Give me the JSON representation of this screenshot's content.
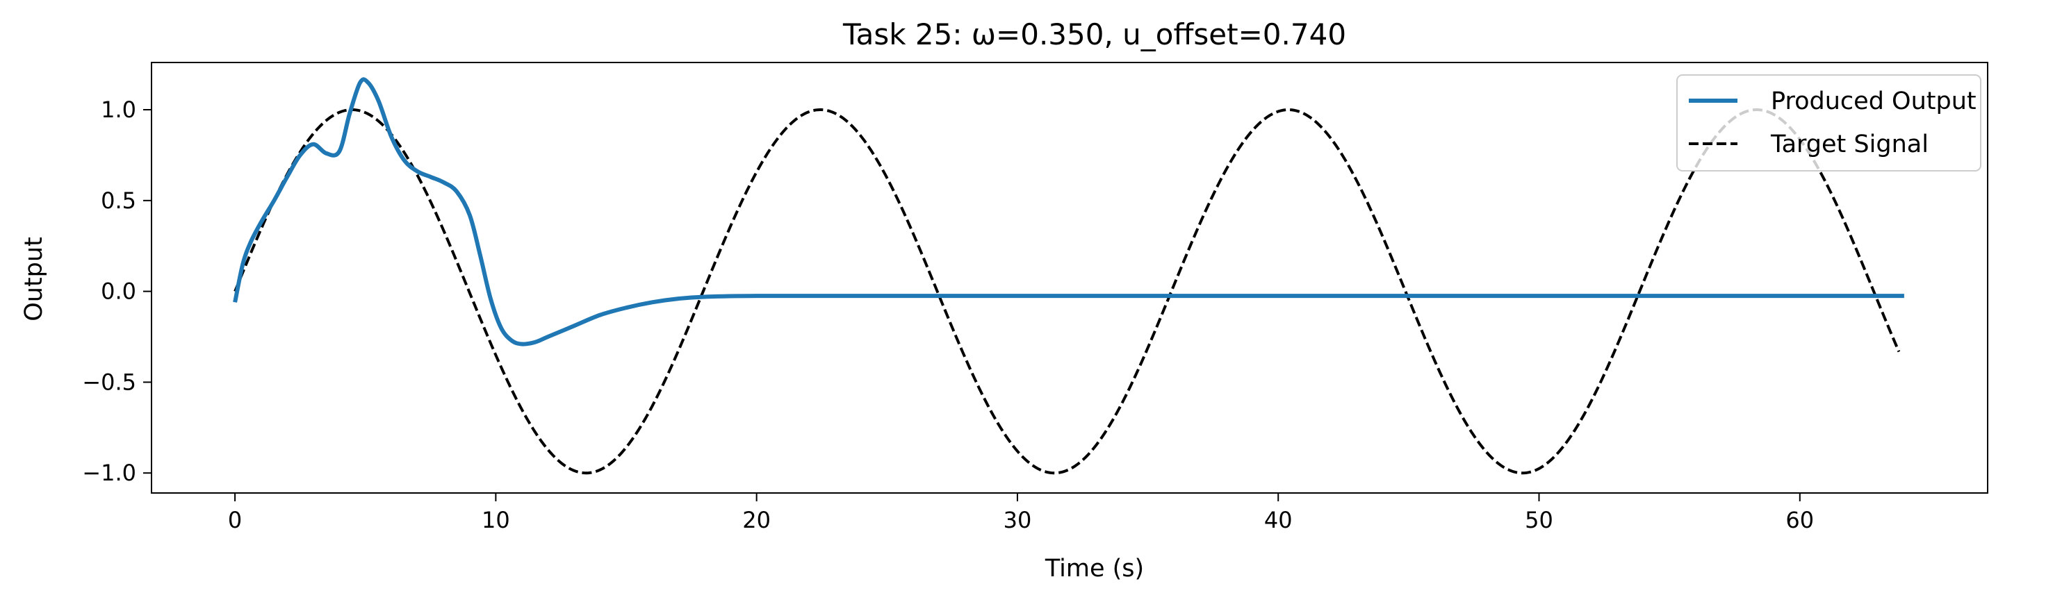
{
  "chart_data": {
    "type": "line",
    "title": "Task 25: ω=0.350, u_offset=0.740",
    "xlabel": "Time (s)",
    "ylabel": "Output",
    "xlim": [
      -3.2,
      67.2
    ],
    "ylim": [
      -1.11,
      1.26
    ],
    "x_ticks": [
      0,
      10,
      20,
      30,
      40,
      50,
      60
    ],
    "y_ticks": [
      -1.0,
      -0.5,
      0.0,
      0.5,
      1.0
    ],
    "x_tick_labels": [
      "0",
      "10",
      "20",
      "30",
      "40",
      "50",
      "60"
    ],
    "y_tick_labels": [
      "−1.0",
      "−0.5",
      "0.0",
      "0.5",
      "1.0"
    ],
    "grid": false,
    "legend_position": "top-right",
    "series": [
      {
        "name": "Produced Output",
        "color": "#1f77b4",
        "style": "solid",
        "x": [
          0,
          0.3,
          0.6,
          1.0,
          1.5,
          2.0,
          2.5,
          3.0,
          3.5,
          4.0,
          4.4,
          4.8,
          5.1,
          5.5,
          6.0,
          6.5,
          7.0,
          7.5,
          8.0,
          8.5,
          9.0,
          9.4,
          9.8,
          10.2,
          10.6,
          11.0,
          11.5,
          12.0,
          13.0,
          14.0,
          15.0,
          16.0,
          17.0,
          18.0,
          20.0,
          25.0,
          30.0,
          40.0,
          50.0,
          60.0,
          64.0
        ],
        "y": [
          -0.06,
          0.15,
          0.27,
          0.38,
          0.5,
          0.63,
          0.75,
          0.81,
          0.76,
          0.77,
          0.98,
          1.15,
          1.15,
          1.05,
          0.85,
          0.72,
          0.66,
          0.63,
          0.6,
          0.55,
          0.42,
          0.2,
          -0.04,
          -0.2,
          -0.27,
          -0.29,
          -0.28,
          -0.25,
          -0.19,
          -0.13,
          -0.09,
          -0.06,
          -0.04,
          -0.03,
          -0.025,
          -0.025,
          -0.025,
          -0.025,
          -0.025,
          -0.025,
          -0.025
        ]
      },
      {
        "name": "Target Signal",
        "color": "#000000",
        "style": "dashed",
        "function": "sin(0.35*t)",
        "t_range": [
          0,
          63.8
        ]
      }
    ]
  }
}
